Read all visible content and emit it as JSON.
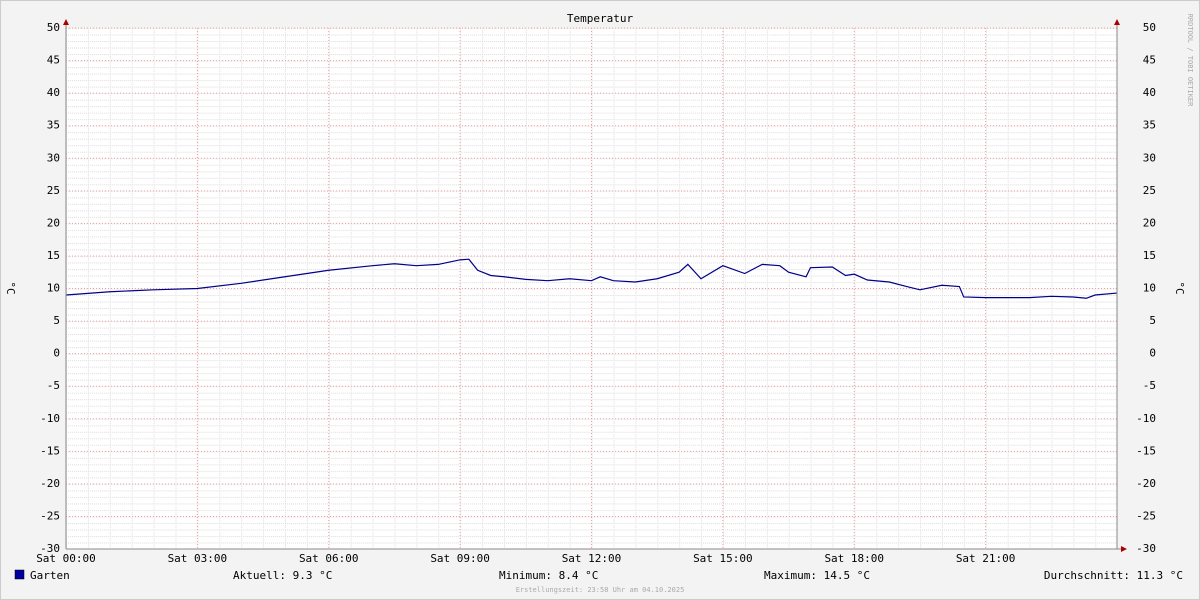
{
  "chart_data": {
    "type": "line",
    "title": "Temperatur",
    "y_label": "°C",
    "watermark": "RRDTOOL / TOBI OETIKER",
    "x": [
      0,
      1,
      2,
      3,
      4,
      5,
      6,
      7,
      7.5,
      8,
      8.5,
      9,
      9.2,
      9.4,
      9.7,
      10,
      10.5,
      11,
      11.5,
      12,
      12.2,
      12.5,
      13,
      13.5,
      14,
      14.2,
      14.5,
      15,
      15.5,
      15.9,
      16.3,
      16.5,
      16.9,
      17,
      17.5,
      17.8,
      18,
      18.3,
      18.8,
      19.2,
      19.5,
      20,
      20.4,
      20.5,
      21,
      22,
      22.5,
      23,
      23.3,
      23.5,
      24
    ],
    "series": [
      {
        "name": "Garten",
        "color": "#00008b",
        "values": [
          9.0,
          9.5,
          9.8,
          10.0,
          10.8,
          11.8,
          12.8,
          13.5,
          13.8,
          13.5,
          13.7,
          14.4,
          14.5,
          12.8,
          12.0,
          11.8,
          11.4,
          11.2,
          11.5,
          11.2,
          11.8,
          11.2,
          11.0,
          11.5,
          12.5,
          13.7,
          11.5,
          13.5,
          12.3,
          13.7,
          13.5,
          12.5,
          11.8,
          13.2,
          13.3,
          12.0,
          12.2,
          11.3,
          11.0,
          10.3,
          9.8,
          10.5,
          10.3,
          8.7,
          8.6,
          8.6,
          8.8,
          8.7,
          8.5,
          9.0,
          9.3
        ]
      }
    ],
    "xlim": [
      0,
      24
    ],
    "xticks": [
      {
        "value": 0,
        "label": "Sat 00:00"
      },
      {
        "value": 3,
        "label": "Sat 03:00"
      },
      {
        "value": 6,
        "label": "Sat 06:00"
      },
      {
        "value": 9,
        "label": "Sat 09:00"
      },
      {
        "value": 12,
        "label": "Sat 12:00"
      },
      {
        "value": 15,
        "label": "Sat 15:00"
      },
      {
        "value": 18,
        "label": "Sat 18:00"
      },
      {
        "value": 21,
        "label": "Sat 21:00"
      }
    ],
    "ylim": [
      -30,
      50
    ],
    "yticks": [
      -30,
      -25,
      -20,
      -15,
      -10,
      -5,
      0,
      5,
      10,
      15,
      20,
      25,
      30,
      35,
      40,
      45,
      50
    ],
    "grid": true,
    "stats": [
      "Aktuell: 9.3 °C",
      "Minimum: 8.4 °C",
      "Maximum: 14.5 °C",
      "Durchschnitt: 11.3 °C"
    ],
    "footer": "Erstellungszeit: 23:58 Uhr am 04.10.2025"
  }
}
